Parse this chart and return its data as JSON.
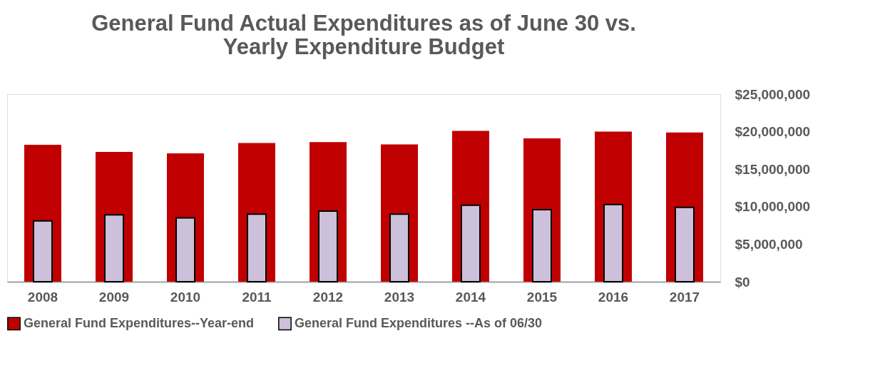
{
  "chart_data": {
    "type": "bar",
    "title": "General Fund Actual Expenditures as of June 30 vs. Yearly Expenditure Budget",
    "categories": [
      "2008",
      "2009",
      "2010",
      "2011",
      "2012",
      "2013",
      "2014",
      "2015",
      "2016",
      "2017"
    ],
    "series": [
      {
        "name": "General Fund Expenditures--Year-end",
        "color": "#c00000",
        "values": [
          18250000,
          17300000,
          17100000,
          18500000,
          18600000,
          18300000,
          20100000,
          19100000,
          20000000,
          19900000
        ]
      },
      {
        "name": "General Fund Expenditures --As of 06/30",
        "color": "#ccc0da",
        "values": [
          8100000,
          8900000,
          8500000,
          9000000,
          9400000,
          9000000,
          10200000,
          9600000,
          10300000,
          9900000
        ]
      }
    ],
    "ylim": [
      0,
      25000000
    ],
    "yticks": [
      {
        "value": 0,
        "label": "$0"
      },
      {
        "value": 5000000,
        "label": "$5,000,000"
      },
      {
        "value": 10000000,
        "label": "$10,000,000"
      },
      {
        "value": 15000000,
        "label": "$15,000,000"
      },
      {
        "value": 20000000,
        "label": "$20,000,000"
      },
      {
        "value": 25000000,
        "label": "$25,000,000"
      }
    ],
    "grid": false,
    "legend": "bottom"
  }
}
